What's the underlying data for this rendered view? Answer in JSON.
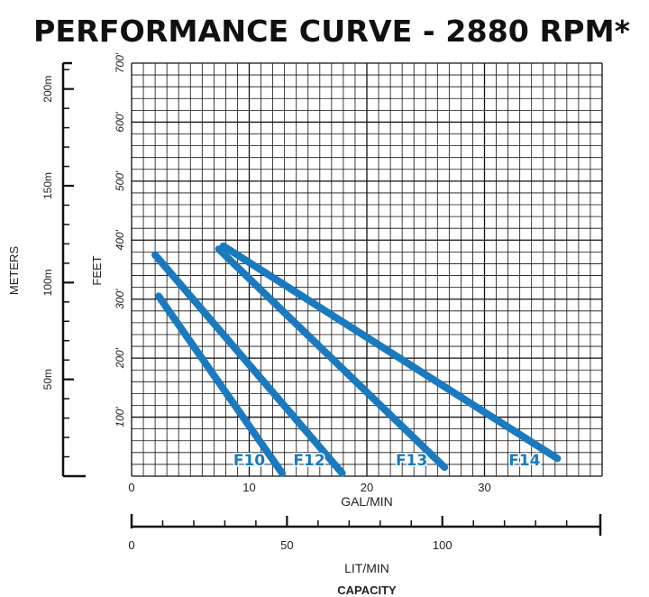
{
  "chart_data": {
    "type": "line",
    "title": "PERFORMANCE CURVE - 2880 RPM*",
    "xlabel": "GAL/MIN",
    "ylabel": "FEET",
    "x_secondary_label": "LIT/MIN",
    "y_secondary_label": "METERS",
    "footer_label": "CAPACITY",
    "xlim": [
      0,
      40
    ],
    "ylim": [
      0,
      700
    ],
    "x_ticks": [
      "0",
      "10",
      "20",
      "30"
    ],
    "y_ticks": [
      "100'",
      "200'",
      "300'",
      "400'",
      "500'",
      "600'",
      "700'"
    ],
    "x2_ticks": [
      "0",
      "50",
      "100"
    ],
    "y2_ticks": [
      "50m",
      "100m",
      "150m",
      "200m"
    ],
    "grid": true,
    "line_color": "#1a7abf",
    "series": [
      {
        "name": "F10",
        "x": [
          2.3,
          12.8
        ],
        "y": [
          305,
          5
        ]
      },
      {
        "name": "F12",
        "x": [
          2.0,
          17.9
        ],
        "y": [
          375,
          5
        ]
      },
      {
        "name": "F13",
        "x": [
          7.4,
          26.6
        ],
        "y": [
          385,
          15
        ]
      },
      {
        "name": "F14",
        "x": [
          7.8,
          36.2
        ],
        "y": [
          390,
          30
        ]
      }
    ]
  }
}
